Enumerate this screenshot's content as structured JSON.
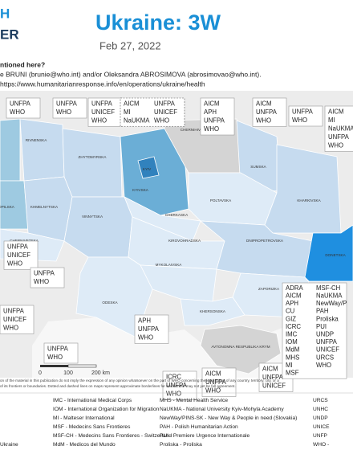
{
  "header": {
    "logo": [
      "H",
      "ER"
    ],
    "title": "Ukraine: 3W",
    "date": "Feb 27, 2022"
  },
  "contact": [
    "ntioned here?",
    "e BRUNI (brunie@who.int) and/or Oleksandra ABROSIMOVA (abrosimovao@who.int).",
    "https://www.humanitarianresponse.info/en/operations/ukraine/health"
  ],
  "map": {
    "regions": [
      "RIVNENSKA",
      "ZHYTOMYRSKA",
      "CHERNIHIVSKA",
      "SUMSKA",
      "KYIV",
      "KYIVSKA",
      "POLTAVSKA",
      "KHARKIVSKA",
      "OPILSKA",
      "KHMELNYTSKA",
      "VINNYTSKA",
      "CHERKASKA",
      "CHERNIVETSKA",
      "KIROVOHRADSKA",
      "DNIPROPETROVSKA",
      "DONETSKA",
      "MYKOLAIVSKA",
      "ZAPORIZKA",
      "KHERSONSKA",
      "ODESKA",
      "AVTONOMNA RESPUBLIKA KRYM"
    ],
    "callouts": [
      {
        "columns": [
          [
            "UNFPA",
            "WHO"
          ]
        ]
      },
      {
        "columns": [
          [
            "UNFPA",
            "WHO"
          ]
        ]
      },
      {
        "columns": [
          [
            "UNFPA",
            "UNICEF",
            "WHO"
          ]
        ]
      },
      {
        "columns": [
          [
            "AICM",
            "MI",
            "NaUKMA"
          ],
          [
            "UNFPA",
            "UNICEF",
            "WHO"
          ]
        ]
      },
      {
        "columns": [
          [
            "AICM",
            "APH",
            "UNFPA",
            "WHO"
          ]
        ]
      },
      {
        "columns": [
          [
            "AICM",
            "UNFPA",
            "WHO"
          ]
        ]
      },
      {
        "columns": [
          [
            "UNFPA",
            "WHO"
          ]
        ]
      },
      {
        "columns": [
          [
            "AICM",
            "MI",
            "NaUKMA",
            "UNFPA",
            "WHO"
          ]
        ]
      },
      {
        "columns": [
          [
            "UNFPA",
            "UNICEF",
            "WHO"
          ]
        ]
      },
      {
        "columns": [
          [
            "UNFPA",
            "WHO"
          ]
        ]
      },
      {
        "columns": [
          [
            "UNFPA",
            "UNICEF",
            "WHO"
          ]
        ]
      },
      {
        "columns": [
          [
            "UNFPA",
            "WHO"
          ]
        ]
      },
      {
        "columns": [
          [
            "APH",
            "UNFPA",
            "WHO"
          ]
        ]
      },
      {
        "columns": [
          [
            "ICRC",
            "UNFPA",
            "WHO"
          ]
        ]
      },
      {
        "columns": [
          [
            "AICM",
            "UNFPA",
            "WHO"
          ]
        ]
      },
      {
        "columns": [
          [
            "AICM",
            "UNFPA",
            "UNICEF"
          ]
        ]
      },
      {
        "columns": [
          [
            "ADRA",
            "AICM",
            "APH",
            "CU",
            "GIZ",
            "ICRC",
            "IMC",
            "IOM",
            "MdM",
            "MHS",
            "MI",
            "MSF"
          ],
          [
            "MSF-CH",
            "NaUKMA",
            "NewWay/P",
            "PAH",
            "Proliska",
            "PUI",
            "UNDP",
            "UNFPA",
            "UNICEF",
            "URCS",
            "WHO"
          ]
        ]
      }
    ],
    "scale": [
      "0",
      "100",
      "200 km"
    ]
  },
  "disclaimer": [
    "on of the material in this publication do not imply the expression of any opinion whatsoever on the part of WHO concerning the legal status of any country, territory, city, or a",
    "of its frontiers or boundaries. Dotted and dashed lines on maps represent approximate borderlines for which there may not yet be full agreement."
  ],
  "legend": [
    [
      "Ukraine"
    ],
    [
      "IMC - International Medical Corps",
      "IOM - International Organization for Migration",
      "MI - Malteser International",
      "MSF - Medecins Sans Frontieres",
      "MSF-CH - Medecins Sans Frontieres - Switzerland",
      "MdM - Medicos del Mundo"
    ],
    [
      "MHS - Mental Health Service",
      "NaUKMA - National University Kyiv-Mohyla Academy",
      "NewWay/PINS-SK - New Way & People in need (Slovakia)",
      "PAH - Polish Humanitarian Action",
      "PUI - Premiere Urgence Internationale",
      "Proliska - Proliska"
    ],
    [
      "URCS",
      "UNHC",
      "UNDP",
      "UNICE",
      "UNFP",
      "WHO -"
    ]
  ]
}
